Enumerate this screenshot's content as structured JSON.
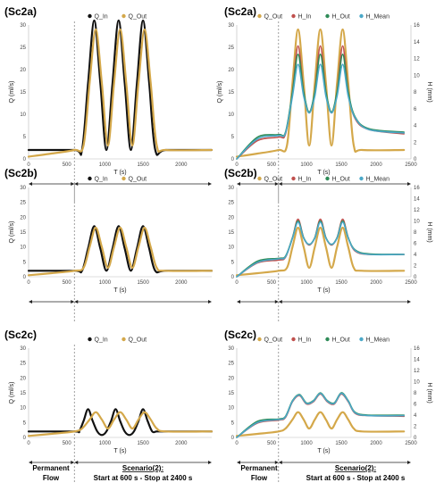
{
  "colors": {
    "Q_In": "#111111",
    "Q_Out": "#d4a84a",
    "H_In": "#c0504d",
    "H_Out": "#2e8b57",
    "H_Mean": "#4aa8c8"
  },
  "chart_data": [
    {
      "id": "sc2a-Q",
      "type": "line",
      "title": "(Sc2a)",
      "xlabel": "T (s)",
      "ylabel": "Q (ml/s)",
      "xlim": [
        0,
        2400
      ],
      "ylim": [
        0,
        30
      ],
      "xticks": [
        "0",
        "500",
        "1000",
        "1500",
        "2000"
      ],
      "yticks": [
        "0",
        "5",
        "10",
        "15",
        "20",
        "25",
        "30"
      ],
      "legend": [
        "Q_In",
        "Q_Out"
      ],
      "legend_position": "top",
      "vline_x": 600,
      "series": [
        {
          "name": "Q_In",
          "x": [
            0,
            600,
            700,
            780,
            860,
            940,
            1020,
            1100,
            1180,
            1260,
            1340,
            1420,
            1500,
            1580,
            1660,
            1800,
            2400
          ],
          "y": [
            2,
            2,
            2,
            17,
            31,
            17,
            2,
            17,
            31,
            17,
            2,
            17,
            31,
            17,
            2,
            2,
            2
          ]
        },
        {
          "name": "Q_Out",
          "x": [
            0,
            300,
            600,
            720,
            800,
            880,
            960,
            1040,
            1120,
            1200,
            1280,
            1360,
            1440,
            1520,
            1600,
            1680,
            1800,
            2400
          ],
          "y": [
            0.5,
            1.2,
            2,
            3,
            17,
            29,
            17,
            3,
            17,
            29,
            17,
            3,
            17,
            29,
            17,
            3,
            2,
            2
          ]
        }
      ]
    },
    {
      "id": "sc2a-H",
      "type": "line",
      "title": "(Sc2a)",
      "xlabel": "T (s)",
      "ylabel": "Q (ml/s)",
      "y2label": "H (mm)",
      "xlim": [
        0,
        2500
      ],
      "ylim": [
        0,
        30
      ],
      "y2lim": [
        0,
        16
      ],
      "xticks": [
        "0",
        "500",
        "1000",
        "1500",
        "2000",
        "2500"
      ],
      "yticks": [
        "0",
        "5",
        "10",
        "15",
        "20",
        "25",
        "30"
      ],
      "y2ticks": [
        "0",
        "2",
        "4",
        "6",
        "8",
        "10",
        "12",
        "14",
        "16"
      ],
      "legend": [
        "Q_Out",
        "H_In",
        "H_Out",
        "H_Mean"
      ],
      "legend_position": "top",
      "vline_x": 600,
      "series": [
        {
          "name": "Q_Out",
          "x": [
            0,
            300,
            600,
            720,
            800,
            880,
            960,
            1040,
            1120,
            1200,
            1280,
            1360,
            1440,
            1520,
            1600,
            1680,
            1800,
            2400
          ],
          "y": [
            0.5,
            1.2,
            2,
            3,
            17,
            29,
            17,
            3,
            17,
            29,
            17,
            3,
            17,
            29,
            17,
            3,
            2,
            2
          ],
          "axis": "left"
        },
        {
          "name": "H_In",
          "x": [
            0,
            300,
            600,
            700,
            800,
            880,
            960,
            1040,
            1120,
            1200,
            1280,
            1360,
            1440,
            1520,
            1600,
            1700,
            1900,
            2400
          ],
          "y": [
            0,
            2.2,
            2.6,
            3,
            8,
            13.5,
            8,
            5.5,
            8,
            13.5,
            8,
            5.5,
            8,
            13.5,
            8,
            4.8,
            3.5,
            3
          ],
          "axis": "right"
        },
        {
          "name": "H_Out",
          "x": [
            0,
            300,
            600,
            700,
            800,
            880,
            960,
            1040,
            1120,
            1200,
            1280,
            1360,
            1440,
            1520,
            1600,
            1700,
            1900,
            2400
          ],
          "y": [
            0,
            2.6,
            2.9,
            3.2,
            8,
            12.5,
            8,
            5.6,
            8,
            12.5,
            8,
            5.6,
            8,
            12.5,
            8,
            5,
            3.6,
            3.2
          ],
          "axis": "right"
        },
        {
          "name": "H_Mean",
          "x": [
            0,
            300,
            600,
            700,
            800,
            880,
            960,
            1040,
            1120,
            1200,
            1280,
            1360,
            1440,
            1520,
            1600,
            1700,
            1900,
            2400
          ],
          "y": [
            0,
            2.4,
            2.8,
            3.1,
            7.5,
            11.3,
            7.5,
            5.5,
            7.5,
            11.3,
            7.5,
            5.5,
            7.5,
            11.3,
            7.5,
            4.9,
            3.5,
            3.1
          ],
          "axis": "right"
        }
      ]
    },
    {
      "id": "sc2b-Q",
      "type": "line",
      "title": "(Sc2b)",
      "xlabel": "T (s)",
      "ylabel": "Q (ml/s)",
      "xlim": [
        0,
        2400
      ],
      "ylim": [
        0,
        30
      ],
      "xticks": [
        "0",
        "500",
        "1000",
        "1500",
        "2000"
      ],
      "yticks": [
        "0",
        "5",
        "10",
        "15",
        "20",
        "25",
        "30"
      ],
      "legend": [
        "Q_In",
        "Q_Out"
      ],
      "legend_position": "top",
      "vline_x": 600,
      "series": [
        {
          "name": "Q_In",
          "x": [
            0,
            600,
            700,
            780,
            860,
            940,
            1020,
            1100,
            1180,
            1260,
            1340,
            1420,
            1500,
            1580,
            1660,
            1800,
            2400
          ],
          "y": [
            2,
            2,
            2,
            9.5,
            17,
            9.5,
            2,
            9.5,
            17,
            9.5,
            2,
            9.5,
            17,
            9.5,
            2,
            2,
            2
          ]
        },
        {
          "name": "Q_Out",
          "x": [
            0,
            300,
            600,
            720,
            800,
            880,
            960,
            1040,
            1120,
            1200,
            1280,
            1360,
            1440,
            1520,
            1600,
            1680,
            1800,
            2400
          ],
          "y": [
            0.5,
            1.2,
            2,
            3,
            10,
            16.5,
            10,
            3,
            10,
            16.5,
            10,
            3,
            10,
            16.5,
            10,
            3,
            2,
            2
          ]
        }
      ]
    },
    {
      "id": "sc2b-H",
      "type": "line",
      "title": "(Sc2b)",
      "xlabel": "T (s)",
      "ylabel": "",
      "y2label": "H (mm)",
      "xlim": [
        0,
        2500
      ],
      "ylim": [
        0,
        30
      ],
      "y2lim": [
        0,
        16
      ],
      "xticks": [
        "0",
        "500",
        "1000",
        "1500",
        "2000",
        "2500"
      ],
      "yticks": [
        "0",
        "5",
        "10",
        "15",
        "20",
        "25",
        "30"
      ],
      "y2ticks": [
        "0",
        "2",
        "4",
        "6",
        "8",
        "10",
        "12",
        "14",
        "16"
      ],
      "legend": [
        "Q_Out",
        "H_In",
        "H_Out",
        "H_Mean"
      ],
      "legend_position": "top",
      "vline_x": 600,
      "series": [
        {
          "name": "Q_Out",
          "x": [
            0,
            300,
            600,
            720,
            800,
            880,
            960,
            1040,
            1120,
            1200,
            1280,
            1360,
            1440,
            1520,
            1600,
            1680,
            1800,
            2400
          ],
          "y": [
            0.5,
            1.2,
            2,
            3,
            10,
            16.5,
            10,
            3,
            10,
            16.5,
            10,
            3,
            10,
            16.5,
            10,
            3,
            2,
            2
          ],
          "axis": "left"
        },
        {
          "name": "H_In",
          "x": [
            0,
            300,
            600,
            700,
            800,
            880,
            960,
            1040,
            1120,
            1200,
            1280,
            1360,
            1440,
            1520,
            1600,
            1700,
            1900,
            2400
          ],
          "y": [
            0,
            2.5,
            3,
            3.5,
            7,
            10.3,
            7,
            5.7,
            7,
            10.3,
            7,
            5.7,
            7,
            10.3,
            7,
            4.6,
            4,
            4
          ],
          "axis": "right"
        },
        {
          "name": "H_Out",
          "x": [
            0,
            300,
            600,
            700,
            800,
            880,
            960,
            1040,
            1120,
            1200,
            1280,
            1360,
            1440,
            1520,
            1600,
            1700,
            1900,
            2400
          ],
          "y": [
            0,
            2.8,
            3.3,
            3.7,
            7,
            10,
            7,
            5.8,
            7,
            10,
            7,
            5.8,
            7,
            10,
            7,
            4.8,
            4.1,
            4
          ],
          "axis": "right"
        },
        {
          "name": "H_Mean",
          "x": [
            0,
            300,
            600,
            700,
            800,
            880,
            960,
            1040,
            1120,
            1200,
            1280,
            1360,
            1440,
            1520,
            1600,
            1700,
            1900,
            2400
          ],
          "y": [
            0,
            2.6,
            3.2,
            3.6,
            6.9,
            9.8,
            6.9,
            5.8,
            6.9,
            9.8,
            6.9,
            5.8,
            6.9,
            9.8,
            6.9,
            4.7,
            4,
            4
          ],
          "axis": "right"
        }
      ]
    },
    {
      "id": "sc2c-Q",
      "type": "line",
      "title": "(Sc2c)",
      "xlabel": "T (s)",
      "ylabel": "Q (ml/s)",
      "xlim": [
        0,
        2400
      ],
      "ylim": [
        0,
        30
      ],
      "xticks": [
        "0",
        "500",
        "1000",
        "1500",
        "2000"
      ],
      "yticks": [
        "0",
        "5",
        "10",
        "15",
        "20",
        "25",
        "30"
      ],
      "legend": [
        "Q_In",
        "Q_Out"
      ],
      "legend_position": "top",
      "vline_x": 600,
      "series": [
        {
          "name": "Q_In",
          "x": [
            0,
            600,
            660,
            720,
            780,
            840,
            900,
            960,
            1020,
            1080,
            1140,
            1200,
            1260,
            1320,
            1380,
            1440,
            1500,
            1560,
            1620,
            1680,
            1800,
            2400
          ],
          "y": [
            2,
            2,
            2,
            5.5,
            9.5,
            5.5,
            2,
            0.8,
            2,
            5.5,
            9.5,
            5.5,
            2,
            0.8,
            2,
            5.5,
            9.5,
            5.5,
            2,
            2,
            2,
            2
          ]
        },
        {
          "name": "Q_Out",
          "x": [
            0,
            300,
            600,
            700,
            800,
            880,
            960,
            1040,
            1120,
            1200,
            1280,
            1360,
            1440,
            1520,
            1600,
            1680,
            1800,
            2400
          ],
          "y": [
            0.5,
            1.2,
            2,
            3,
            6,
            8.5,
            6,
            3,
            6,
            8.5,
            6,
            3,
            6,
            8.5,
            6,
            3,
            2,
            2
          ]
        }
      ]
    },
    {
      "id": "sc2c-H",
      "type": "line",
      "title": "(Sc2c)",
      "xlabel": "T (s)",
      "ylabel": "",
      "y2label": "H (mm)",
      "xlim": [
        0,
        2500
      ],
      "ylim": [
        0,
        30
      ],
      "y2lim": [
        0,
        16
      ],
      "xticks": [
        "0",
        "500",
        "1000",
        "1500",
        "2000",
        "2500"
      ],
      "yticks": [
        "0",
        "5",
        "10",
        "15",
        "20",
        "25",
        "30"
      ],
      "y2ticks": [
        "0",
        "2",
        "4",
        "6",
        "8",
        "10",
        "12",
        "14",
        "16"
      ],
      "legend": [
        "Q_Out",
        "H_In",
        "H_Out",
        "H_Mean"
      ],
      "legend_position": "top",
      "vline_x": 600,
      "series": [
        {
          "name": "Q_Out",
          "x": [
            0,
            300,
            600,
            700,
            800,
            880,
            960,
            1040,
            1120,
            1200,
            1280,
            1360,
            1440,
            1520,
            1600,
            1680,
            1800,
            2400
          ],
          "y": [
            0.5,
            1.2,
            2,
            3,
            6,
            8.5,
            6,
            3,
            6,
            8.5,
            6,
            3,
            6,
            8.5,
            6,
            3,
            2,
            2
          ],
          "axis": "left"
        },
        {
          "name": "H_In",
          "x": [
            0,
            300,
            600,
            700,
            800,
            900,
            1000,
            1100,
            1200,
            1300,
            1400,
            1500,
            1600,
            1700,
            1900,
            2400
          ],
          "y": [
            0,
            2.6,
            3.1,
            3.6,
            6.4,
            7.5,
            6,
            6.4,
            7.8,
            6.4,
            6,
            7.8,
            6.4,
            4.3,
            3.9,
            3.8
          ],
          "axis": "right"
        },
        {
          "name": "H_Out",
          "x": [
            0,
            300,
            600,
            700,
            800,
            900,
            1000,
            1100,
            1200,
            1300,
            1400,
            1500,
            1600,
            1700,
            1900,
            2400
          ],
          "y": [
            0,
            2.9,
            3.3,
            3.8,
            6.6,
            7.7,
            6.2,
            6.6,
            8,
            6.6,
            6.2,
            8,
            6.6,
            4.5,
            4,
            4
          ],
          "axis": "right"
        },
        {
          "name": "H_Mean",
          "x": [
            0,
            300,
            600,
            700,
            800,
            900,
            1000,
            1100,
            1200,
            1300,
            1400,
            1500,
            1600,
            1700,
            1900,
            2400
          ],
          "y": [
            0,
            2.7,
            3.2,
            3.7,
            6.5,
            7.6,
            6.1,
            6.5,
            7.9,
            6.5,
            6.1,
            7.9,
            6.5,
            4.4,
            3.9,
            3.9
          ],
          "axis": "right"
        }
      ]
    }
  ],
  "annotations": {
    "permanent_flow_line1": "Permanent",
    "permanent_flow_line2": "Flow",
    "scenario_line1": "Scenario(2):",
    "scenario_line2": "Start at 600 s - Stop at 2400 s"
  }
}
